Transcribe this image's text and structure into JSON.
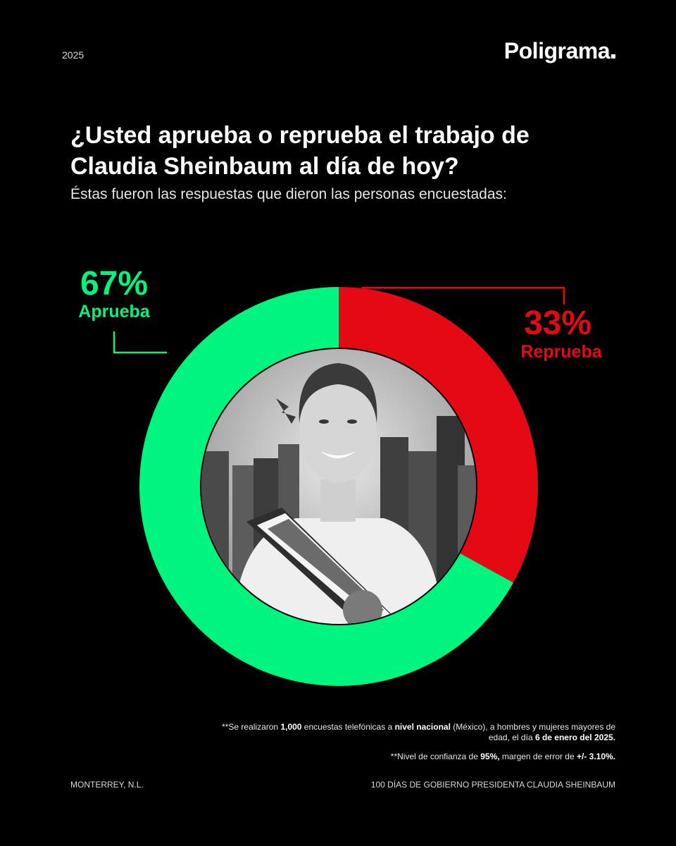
{
  "header": {
    "year": "2025",
    "brand": "Poligrama"
  },
  "question": "¿Usted aprueba o reprueba el trabajo de Claudia Sheinbaum al día de hoy?",
  "intro": "Éstas fueron las respuestas que dieron las personas encuestadas:",
  "chart_data": {
    "type": "pie",
    "variant": "donut",
    "title": "",
    "categories": [
      "Aprueba",
      "Reprueba"
    ],
    "values": [
      67,
      33
    ],
    "value_labels": [
      "67%",
      "33%"
    ],
    "colors": [
      "#00f57e",
      "#e50914"
    ],
    "center_image": "portrait-photo"
  },
  "notes": {
    "n1_a": "**Se realizaron ",
    "n1_b": "1,000",
    "n1_c": " encuestas telefónicas a ",
    "n1_d": "nivel nacional",
    "n1_e": " (México), a hombres y mujeres mayores de edad, el día ",
    "n1_f": "6 de enero del 2025.",
    "n2_a": "**Nivel de confianza de ",
    "n2_b": "95%,",
    "n2_c": " margen de error de ",
    "n2_d": "+/- 3.10%."
  },
  "footer": {
    "location": "MONTERREY, N.L.",
    "campaign": "100 DÍAS DE GOBIERNO PRESIDENTA CLAUDIA SHEINBAUM"
  }
}
